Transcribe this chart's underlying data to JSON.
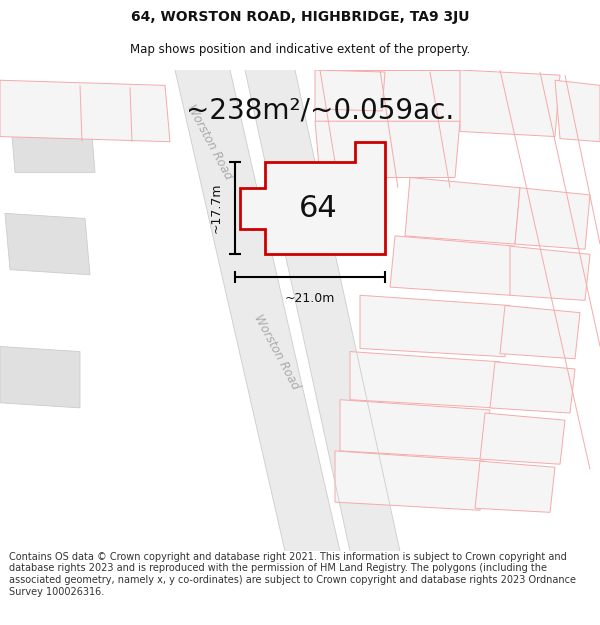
{
  "title": "64, WORSTON ROAD, HIGHBRIDGE, TA9 3JU",
  "subtitle": "Map shows position and indicative extent of the property.",
  "area_text": "~238m²/~0.059ac.",
  "house_number": "64",
  "dim_vertical": "~17.7m",
  "dim_horizontal": "~21.0m",
  "road_label": "Worston Road",
  "footer_text": "Contains OS data © Crown copyright and database right 2021. This information is subject to Crown copyright and database rights 2023 and is reproduced with the permission of HM Land Registry. The polygons (including the associated geometry, namely x, y co-ordinates) are subject to Crown copyright and database rights 2023 Ordnance Survey 100026316.",
  "bg_color": "#ffffff",
  "road_fill": "#ebebeb",
  "building_fill": "#e0e0e0",
  "highlight_fill": "#f5f5f5",
  "highlight_stroke": "#cc0000",
  "parcel_stroke": "#f5aaaa",
  "road_stroke": "#cccccc",
  "title_fontsize": 10,
  "subtitle_fontsize": 8.5,
  "area_fontsize": 20,
  "footer_fontsize": 7,
  "road_label_color": "#aaaaaa",
  "dim_fontsize": 9
}
